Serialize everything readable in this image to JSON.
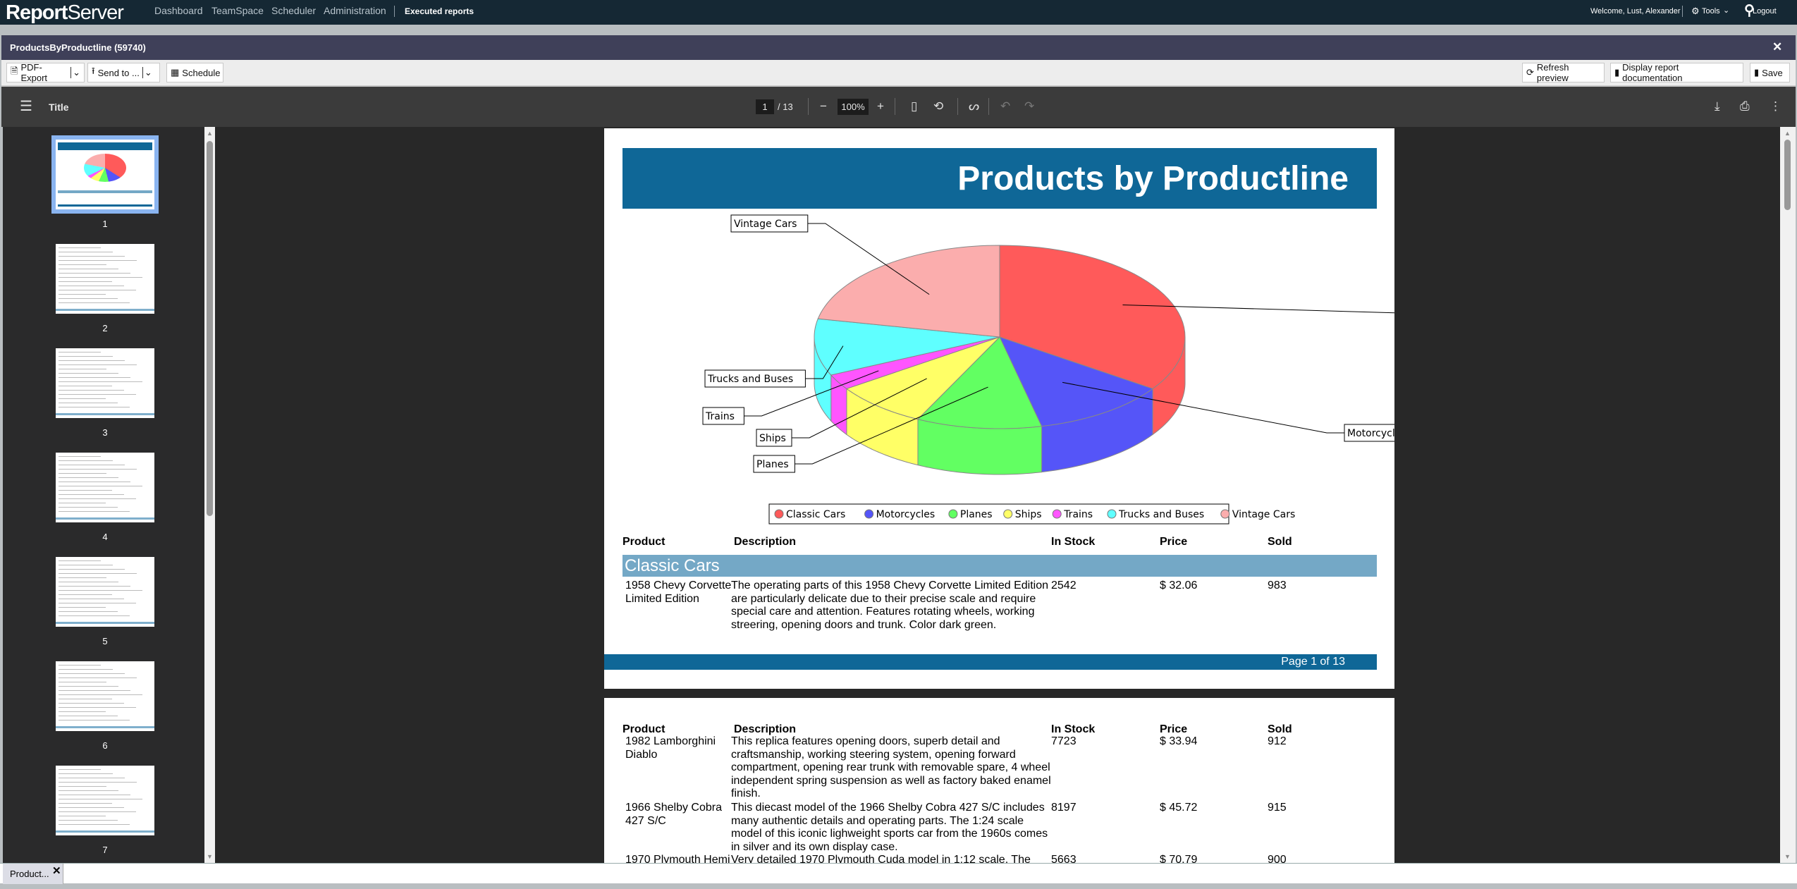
{
  "app": {
    "logo_bold": "Report",
    "logo_light": "Server",
    "nav": [
      "Dashboard",
      "TeamSpace",
      "Scheduler",
      "Administration"
    ],
    "nav_active": "Executed reports",
    "welcome": "Welcome, Lust, Alexander",
    "tools": "Tools",
    "logout": "Logout"
  },
  "window": {
    "title": "ProductsByProductline (59740)",
    "close": "✕"
  },
  "toolbar": {
    "pdf_export": "PDF-Export",
    "send_to": "Send to ...",
    "schedule": "Schedule",
    "refresh": "Refresh preview",
    "documentation": "Display report documentation",
    "save": "Save"
  },
  "viewer": {
    "title": "Title",
    "page": "1",
    "page_total": "/ 13",
    "zoom": "100%"
  },
  "thumbnails": [
    "1",
    "2",
    "3",
    "4",
    "5",
    "6",
    "7"
  ],
  "report": {
    "title": "Products by Productline",
    "columns": [
      "Product",
      "Description",
      "In Stock",
      "Price",
      "Sold"
    ],
    "group": "Classic Cars",
    "page1_rows": [
      {
        "product": "1958 Chevy Corvette Limited Edition",
        "description": "The operating parts of this 1958 Chevy Corvette Limited Edition are particularly delicate due to their precise scale and require special care and attention. Features rotating wheels, working streering, opening doors and trunk. Color dark green.",
        "stock": "2542",
        "price": "$ 32.06",
        "sold": "983"
      }
    ],
    "footer": "Page 1 of 13",
    "page2_rows": [
      {
        "product": "1982 Lamborghini Diablo",
        "description": "This replica features opening doors, superb detail and craftsmanship, working steering system, opening forward compartment, opening rear trunk with removable spare, 4 wheel independent spring suspension as well as factory baked enamel finish.",
        "stock": "7723",
        "price": "$ 33.94",
        "sold": "912"
      },
      {
        "product": "1966 Shelby Cobra 427 S/C",
        "description": "This diecast model of the 1966 Shelby Cobra 427 S/C includes many authentic details and operating parts. The 1:24 scale model of this iconic lighweight sports car from the 1960s comes in silver and its own display case.",
        "stock": "8197",
        "price": "$ 45.72",
        "sold": "915"
      },
      {
        "product": "1970 Plymouth Hemi",
        "description": "Very detailed 1970 Plymouth Cuda model in 1:12 scale. The",
        "stock": "5663",
        "price": "$ 70.79",
        "sold": "900"
      }
    ]
  },
  "chart_data": {
    "type": "pie",
    "style": "3d",
    "legend": "bottom",
    "categories": [
      "Classic Cars",
      "Motorcycles",
      "Planes",
      "Ships",
      "Trains",
      "Trucks and Buses",
      "Vintage Cars"
    ],
    "values": [
      38,
      13,
      12,
      9,
      3,
      11,
      24
    ],
    "colors": [
      "#ff5a5a",
      "#5555f8",
      "#62ff62",
      "#ffff66",
      "#ff55ff",
      "#5fffff",
      "#fbadad"
    ]
  },
  "bottom_tab": {
    "label": "Product...",
    "close": "✕"
  }
}
